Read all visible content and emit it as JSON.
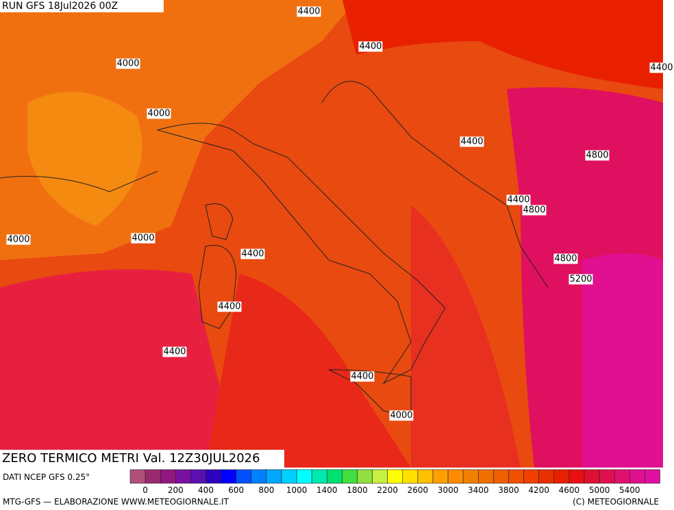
{
  "header": {
    "run": "RUN GFS 18Jul2026 00Z"
  },
  "contours": [
    "4400",
    "4400",
    "4000",
    "4000",
    "4400",
    "4400",
    "4800",
    "4400",
    "4800",
    "4000",
    "4000",
    "4400",
    "4800",
    "5200",
    "4400",
    "4400",
    "4400",
    "4000"
  ],
  "title": "ZERO TERMICO METRI Val. 12Z30JUL2026",
  "source": "DATI NCEP GFS 0.25°",
  "colorbar": {
    "colors": [
      "#b0507a",
      "#9a2a70",
      "#901880",
      "#7a10a0",
      "#5a10b0",
      "#3000c0",
      "#0000ff",
      "#0050ff",
      "#0080ff",
      "#00a8ff",
      "#00d0ff",
      "#00ffff",
      "#00e8b0",
      "#00e070",
      "#40e040",
      "#90e040",
      "#c8f040",
      "#ffff00",
      "#ffe000",
      "#ffc000",
      "#ffa000",
      "#ff8c00",
      "#f08000",
      "#f07000",
      "#f06000",
      "#f05000",
      "#f04000",
      "#e83000",
      "#e82000",
      "#e81010",
      "#e01030",
      "#e01050",
      "#e01070",
      "#e01090",
      "#e010a0"
    ],
    "labels": [
      "0",
      "200",
      "400",
      "600",
      "800",
      "1000",
      "1400",
      "1800",
      "2200",
      "2600",
      "3000",
      "3400",
      "3800",
      "4200",
      "4600",
      "5000",
      "5400"
    ]
  },
  "footer": {
    "left": "MTG-GFS — ELABORAZIONE WWW.METEOGIORNALE.IT",
    "right": "(C) METEOGIORNALE"
  }
}
